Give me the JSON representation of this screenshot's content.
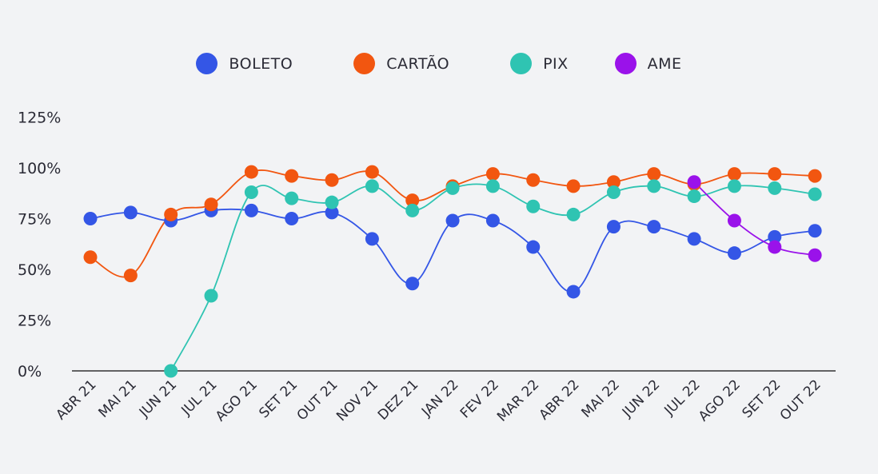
{
  "chart_data": {
    "type": "line",
    "title": "",
    "xlabel": "",
    "ylabel": "",
    "ylim": [
      0,
      125
    ],
    "yticks": [
      "0%",
      "25%",
      "50%",
      "75%",
      "100%",
      "125%"
    ],
    "ytick_values": [
      0,
      25,
      50,
      75,
      100,
      125
    ],
    "legend_position": "top-center",
    "grid": false,
    "categories": [
      "ABR 21",
      "MAI 21",
      "JUN 21",
      "JUL 21",
      "AGO 21",
      "SET 21",
      "OUT 21",
      "NOV 21",
      "DEZ 21",
      "JAN 22",
      "FEV 22",
      "MAR 22",
      "ABR 22",
      "MAI 22",
      "JUN 22",
      "JUL 22",
      "AGO 22",
      "SET 22",
      "OUT 22"
    ],
    "series": [
      {
        "name": "BOLETO",
        "color": "#3456e6",
        "values": [
          75,
          78,
          74,
          79,
          79,
          75,
          78,
          65,
          43,
          74,
          74,
          61,
          39,
          71,
          71,
          65,
          58,
          66,
          69
        ]
      },
      {
        "name": "CARTÃO",
        "color": "#f25610",
        "values": [
          56,
          47,
          77,
          82,
          98,
          96,
          94,
          98,
          84,
          91,
          97,
          94,
          91,
          93,
          97,
          92,
          97,
          97,
          96
        ]
      },
      {
        "name": "PIX",
        "color": "#2fc4b2",
        "values": [
          null,
          null,
          0,
          37,
          88,
          85,
          83,
          91,
          79,
          90,
          91,
          81,
          77,
          88,
          91,
          86,
          91,
          90,
          87
        ]
      },
      {
        "name": "AME",
        "color": "#9a12ea",
        "values": [
          null,
          null,
          null,
          null,
          null,
          null,
          null,
          null,
          null,
          null,
          null,
          null,
          null,
          null,
          null,
          93,
          74,
          61,
          57
        ]
      }
    ]
  }
}
